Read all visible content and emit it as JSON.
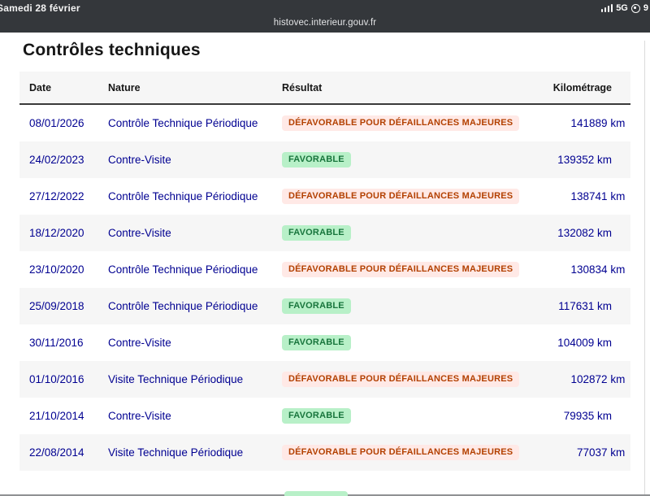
{
  "status_bar": {
    "date": "Samedi 28 février",
    "url": "histovec.interieur.gouv.fr",
    "network": "5G",
    "battery_percent": "9"
  },
  "page": {
    "title": "Contrôles techniques"
  },
  "table": {
    "headers": {
      "date": "Date",
      "nature": "Nature",
      "resultat": "Résultat",
      "kilometrage": "Kilométrage"
    },
    "rows": [
      {
        "date": "08/01/2026",
        "nature": "Contrôle Technique Périodique",
        "resultat": "DÉFAVORABLE POUR DÉFAILLANCES MAJEURES",
        "resultat_type": "defavorable",
        "kilometrage": "141889 km"
      },
      {
        "date": "24/02/2023",
        "nature": "Contre-Visite",
        "resultat": "FAVORABLE",
        "resultat_type": "favorable",
        "kilometrage": "139352 km"
      },
      {
        "date": "27/12/2022",
        "nature": "Contrôle Technique Périodique",
        "resultat": "DÉFAVORABLE POUR DÉFAILLANCES MAJEURES",
        "resultat_type": "defavorable",
        "kilometrage": "138741 km"
      },
      {
        "date": "18/12/2020",
        "nature": "Contre-Visite",
        "resultat": "FAVORABLE",
        "resultat_type": "favorable",
        "kilometrage": "132082 km"
      },
      {
        "date": "23/10/2020",
        "nature": "Contrôle Technique Périodique",
        "resultat": "DÉFAVORABLE POUR DÉFAILLANCES MAJEURES",
        "resultat_type": "defavorable",
        "kilometrage": "130834 km"
      },
      {
        "date": "25/09/2018",
        "nature": "Contrôle Technique Périodique",
        "resultat": "FAVORABLE",
        "resultat_type": "favorable",
        "kilometrage": "117631 km"
      },
      {
        "date": "30/11/2016",
        "nature": "Contre-Visite",
        "resultat": "FAVORABLE",
        "resultat_type": "favorable",
        "kilometrage": "104009 km"
      },
      {
        "date": "01/10/2016",
        "nature": "Visite Technique Périodique",
        "resultat": "DÉFAVORABLE POUR DÉFAILLANCES MAJEURES",
        "resultat_type": "defavorable",
        "kilometrage": "102872 km"
      },
      {
        "date": "21/10/2014",
        "nature": "Contre-Visite",
        "resultat": "FAVORABLE",
        "resultat_type": "favorable",
        "kilometrage": "79935 km"
      },
      {
        "date": "22/08/2014",
        "nature": "Visite Technique Périodique",
        "resultat": "DÉFAVORABLE POUR DÉFAILLANCES MAJEURES",
        "resultat_type": "defavorable",
        "kilometrage": "77037 km"
      }
    ]
  },
  "colors": {
    "status_bar_bg": "#34373b",
    "text_blue": "#000091",
    "success_text": "#18753c",
    "success_bg": "#b8f0c8",
    "warning_text": "#b34000",
    "warning_bg": "#ffe9e6",
    "alt_row_bg": "#f6f6f6",
    "header_border": "#3a3a3a"
  }
}
